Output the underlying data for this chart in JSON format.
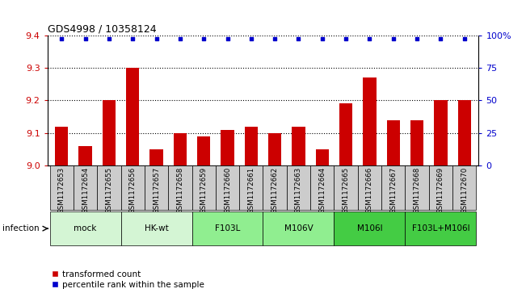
{
  "title": "GDS4998 / 10358124",
  "samples": [
    "GSM1172653",
    "GSM1172654",
    "GSM1172655",
    "GSM1172656",
    "GSM1172657",
    "GSM1172658",
    "GSM1172659",
    "GSM1172660",
    "GSM1172661",
    "GSM1172662",
    "GSM1172663",
    "GSM1172664",
    "GSM1172665",
    "GSM1172666",
    "GSM1172667",
    "GSM1172668",
    "GSM1172669",
    "GSM1172670"
  ],
  "bar_values": [
    9.12,
    9.06,
    9.2,
    9.3,
    9.05,
    9.1,
    9.09,
    9.11,
    9.12,
    9.1,
    9.12,
    9.05,
    9.19,
    9.27,
    9.14,
    9.14,
    9.2,
    9.2
  ],
  "percentile_values": [
    97,
    97,
    97,
    97,
    97,
    97,
    97,
    97,
    97,
    97,
    97,
    97,
    97,
    97,
    97,
    97,
    97,
    97
  ],
  "groups": [
    {
      "label": "mock",
      "start": 0,
      "end": 2,
      "color": "#d4f5d4"
    },
    {
      "label": "HK-wt",
      "start": 3,
      "end": 5,
      "color": "#d4f5d4"
    },
    {
      "label": "F103L",
      "start": 6,
      "end": 8,
      "color": "#90ee90"
    },
    {
      "label": "M106V",
      "start": 9,
      "end": 11,
      "color": "#90ee90"
    },
    {
      "label": "M106I",
      "start": 12,
      "end": 14,
      "color": "#44cc44"
    },
    {
      "label": "F103L+M106I",
      "start": 15,
      "end": 17,
      "color": "#44cc44"
    }
  ],
  "ylim_left": [
    9.0,
    9.4
  ],
  "ylim_right": [
    0,
    100
  ],
  "yticks_left": [
    9.0,
    9.1,
    9.2,
    9.3,
    9.4
  ],
  "yticks_right": [
    0,
    25,
    50,
    75,
    100
  ],
  "bar_color": "#cc0000",
  "dot_color": "#0000cc",
  "gray_box": "#cccccc",
  "infection_label": "infection",
  "legend_bar_label": "transformed count",
  "legend_dot_label": "percentile rank within the sample",
  "left_tick_color": "#cc0000",
  "right_tick_color": "#0000cc"
}
